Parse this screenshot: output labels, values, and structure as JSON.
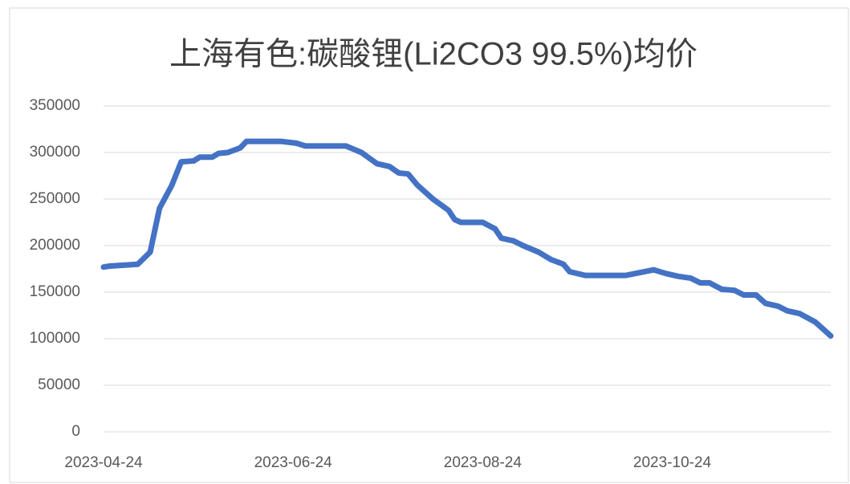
{
  "chart_data": {
    "type": "line",
    "title": "上海有色:碳酸锂(Li2CO3 99.5%)均价",
    "x": [
      "2023-04-24",
      "2023-04-26",
      "2023-05-05",
      "2023-05-09",
      "2023-05-12",
      "2023-05-16",
      "2023-05-19",
      "2023-05-23",
      "2023-05-25",
      "2023-05-29",
      "2023-05-31",
      "2023-06-03",
      "2023-06-07",
      "2023-06-09",
      "2023-06-20",
      "2023-06-25",
      "2023-06-28",
      "2023-07-11",
      "2023-07-16",
      "2023-07-21",
      "2023-07-25",
      "2023-07-28",
      "2023-07-31",
      "2023-08-03",
      "2023-08-08",
      "2023-08-13",
      "2023-08-15",
      "2023-08-17",
      "2023-08-24",
      "2023-08-28",
      "2023-08-30",
      "2023-09-03",
      "2023-09-06",
      "2023-09-11",
      "2023-09-15",
      "2023-09-19",
      "2023-09-21",
      "2023-09-26",
      "2023-10-09",
      "2023-10-12",
      "2023-10-18",
      "2023-10-22",
      "2023-10-26",
      "2023-10-30",
      "2023-11-02",
      "2023-11-05",
      "2023-11-09",
      "2023-11-13",
      "2023-11-16",
      "2023-11-20",
      "2023-11-23",
      "2023-11-27",
      "2023-11-30",
      "2023-12-04",
      "2023-12-09",
      "2023-12-14"
    ],
    "series": [
      {
        "color": "#4472c4",
        "values": [
          177000,
          178000,
          180000,
          193000,
          240000,
          265000,
          290000,
          291000,
          295000,
          295000,
          299000,
          300000,
          305000,
          312000,
          312000,
          310000,
          307000,
          307000,
          300000,
          288000,
          285000,
          278000,
          277000,
          265000,
          250000,
          238000,
          228000,
          225000,
          225000,
          218000,
          208000,
          205000,
          200000,
          193000,
          185000,
          180000,
          172000,
          168000,
          168000,
          170000,
          174000,
          170000,
          167000,
          165000,
          160000,
          160000,
          153000,
          152000,
          147000,
          147000,
          138000,
          135000,
          130000,
          127000,
          118000,
          103000
        ]
      }
    ],
    "xlim": [
      "2023-04-24",
      "2023-12-14"
    ],
    "xticks": [
      "2023-04-24",
      "2023-06-24",
      "2023-08-24",
      "2023-10-24"
    ],
    "ylim": [
      0,
      350000
    ],
    "yticks": [
      0,
      50000,
      100000,
      150000,
      200000,
      250000,
      300000,
      350000
    ],
    "grid": true
  }
}
